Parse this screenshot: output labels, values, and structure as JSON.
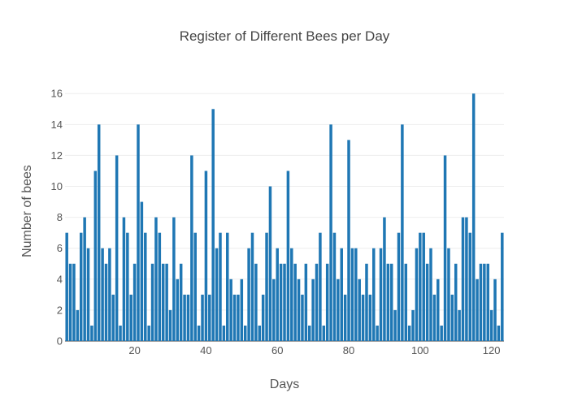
{
  "chart_data": {
    "type": "bar",
    "title": "Register of Different Bees per Day",
    "xlabel": "Days",
    "ylabel": "Number of bees",
    "x": [
      1,
      2,
      3,
      4,
      5,
      6,
      7,
      8,
      9,
      10,
      11,
      12,
      13,
      14,
      15,
      16,
      17,
      18,
      19,
      20,
      21,
      22,
      23,
      24,
      25,
      26,
      27,
      28,
      29,
      30,
      31,
      32,
      33,
      34,
      35,
      36,
      37,
      38,
      39,
      40,
      41,
      42,
      43,
      44,
      45,
      46,
      47,
      48,
      49,
      50,
      51,
      52,
      53,
      54,
      55,
      56,
      57,
      58,
      59,
      60,
      61,
      62,
      63,
      64,
      65,
      66,
      67,
      68,
      69,
      70,
      71,
      72,
      73,
      74,
      75,
      76,
      77,
      78,
      79,
      80,
      81,
      82,
      83,
      84,
      85,
      86,
      87,
      88,
      89,
      90,
      91,
      92,
      93,
      94,
      95,
      96,
      97,
      98,
      99,
      100,
      101,
      102,
      103,
      104,
      105,
      106,
      107,
      108,
      109,
      110,
      111,
      112,
      113,
      114,
      115,
      116,
      117,
      118,
      119,
      120,
      121,
      122,
      123
    ],
    "values": [
      7,
      5,
      5,
      2,
      7,
      8,
      6,
      1,
      11,
      14,
      6,
      5,
      6,
      3,
      12,
      1,
      8,
      7,
      3,
      5,
      14,
      9,
      7,
      1,
      5,
      8,
      7,
      5,
      5,
      2,
      8,
      4,
      5,
      3,
      3,
      12,
      7,
      1,
      3,
      11,
      3,
      15,
      6,
      7,
      1,
      7,
      4,
      3,
      3,
      4,
      1,
      6,
      7,
      5,
      1,
      3,
      7,
      10,
      4,
      6,
      5,
      5,
      11,
      6,
      5,
      4,
      3,
      5,
      1,
      4,
      5,
      7,
      1,
      5,
      14,
      7,
      4,
      6,
      3,
      13,
      6,
      6,
      4,
      3,
      5,
      3,
      6,
      1,
      6,
      8,
      5,
      5,
      2,
      7,
      14,
      5,
      1,
      2,
      6,
      7,
      7,
      5,
      6,
      3,
      4,
      1,
      12,
      6,
      3,
      5,
      2,
      8,
      8,
      7,
      16,
      4,
      5,
      5,
      5,
      2,
      4,
      1,
      7
    ],
    "xlim": [
      0.5,
      123.5
    ],
    "ylim": [
      0,
      16.8
    ],
    "x_ticks": [
      20,
      40,
      60,
      80,
      100,
      120
    ],
    "y_ticks": [
      0,
      2,
      4,
      6,
      8,
      10,
      12,
      14,
      16
    ],
    "grid": true,
    "colors": {
      "bar": "#1f77b4",
      "grid": "#eeeeee",
      "text": "#444444"
    }
  }
}
